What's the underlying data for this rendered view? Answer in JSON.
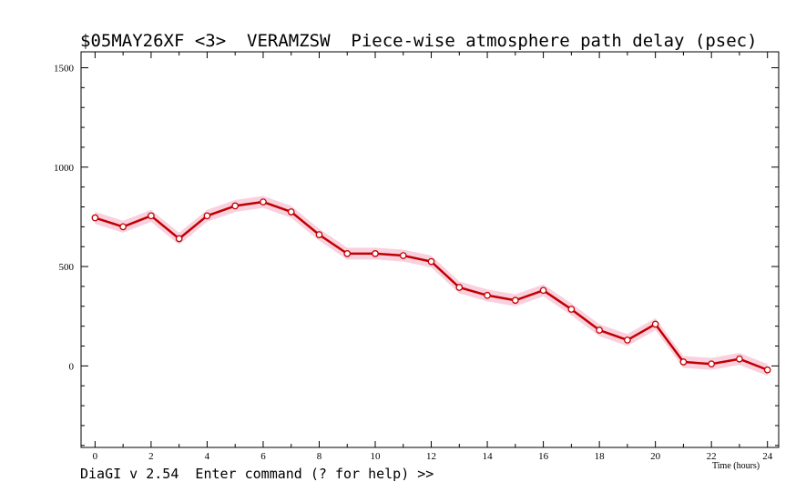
{
  "app": {
    "status_line": "DiaGI v 2.54  Enter command (? for help) >>"
  },
  "colors": {
    "line": "#c00000",
    "band": "#f8c8d8",
    "point_fill": "#ffffff",
    "axis": "#000000"
  },
  "chart_data": {
    "type": "line",
    "title": "$05MAY26XF <3>  VERAMZSW  Piece-wise atmosphere path delay (psec)",
    "xlabel": "Time (hours)",
    "ylabel": "",
    "xlim": [
      -0.5,
      24.4
    ],
    "ylim": [
      -410,
      1580
    ],
    "x_ticks": [
      0,
      2,
      4,
      6,
      8,
      10,
      12,
      14,
      16,
      18,
      20,
      22,
      24
    ],
    "x_tick_labels": [
      "0",
      "2",
      "4",
      "6",
      "8",
      "10",
      "12",
      "14",
      "16",
      "18",
      "20",
      "22",
      "24"
    ],
    "y_ticks": [
      0,
      500,
      1000,
      1500
    ],
    "y_tick_labels": [
      "0",
      "500",
      "1000",
      "1500"
    ],
    "grid": false,
    "error_band_halfwidth": 30,
    "series": [
      {
        "x": [
          0,
          1,
          2,
          3,
          4,
          5,
          6,
          7,
          8,
          9,
          10,
          11,
          12,
          13,
          14,
          15,
          16,
          17,
          18,
          19,
          20,
          21,
          22,
          23,
          24
        ],
        "values": [
          745,
          700,
          755,
          640,
          755,
          805,
          825,
          775,
          660,
          565,
          565,
          555,
          525,
          395,
          355,
          330,
          380,
          285,
          180,
          130,
          210,
          20,
          10,
          35,
          -20
        ]
      }
    ]
  }
}
